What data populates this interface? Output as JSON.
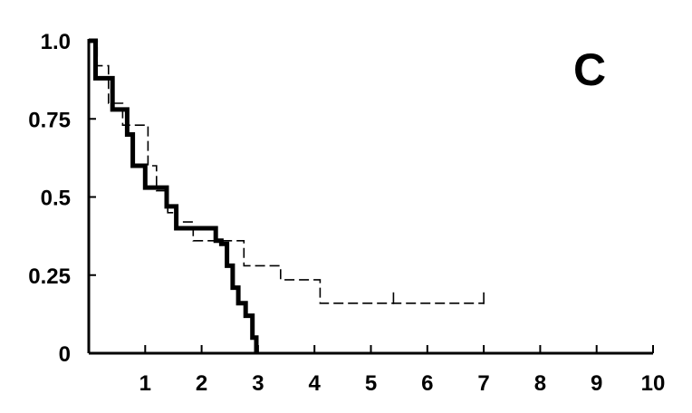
{
  "chart_data": {
    "type": "line",
    "title": "",
    "xlabel": "",
    "ylabel": "",
    "panel_label": "C",
    "xlim": [
      0,
      10
    ],
    "ylim": [
      0,
      1.0
    ],
    "x_ticks": [
      1,
      2,
      3,
      4,
      5,
      6,
      7,
      8,
      9,
      10
    ],
    "x_tick_labels": [
      "1",
      "2",
      "3",
      "4",
      "5",
      "6",
      "7",
      "8",
      "9",
      "10"
    ],
    "y_ticks": [
      0,
      0.25,
      0.5,
      0.75,
      1.0
    ],
    "y_tick_labels": [
      "0",
      "0.25",
      "0.5",
      "0.75",
      "1.0"
    ],
    "grid": false,
    "step": true,
    "series": [
      {
        "style": "solid-thick",
        "color": "#000000",
        "points": [
          [
            0,
            1.0
          ],
          [
            0.12,
            1.0
          ],
          [
            0.12,
            0.88
          ],
          [
            0.42,
            0.88
          ],
          [
            0.42,
            0.78
          ],
          [
            0.68,
            0.78
          ],
          [
            0.68,
            0.7
          ],
          [
            0.78,
            0.7
          ],
          [
            0.78,
            0.6
          ],
          [
            1.0,
            0.6
          ],
          [
            1.0,
            0.53
          ],
          [
            1.38,
            0.53
          ],
          [
            1.38,
            0.47
          ],
          [
            1.55,
            0.47
          ],
          [
            1.55,
            0.4
          ],
          [
            2.25,
            0.4
          ],
          [
            2.25,
            0.36
          ],
          [
            2.35,
            0.36
          ],
          [
            2.35,
            0.35
          ],
          [
            2.45,
            0.35
          ],
          [
            2.45,
            0.28
          ],
          [
            2.55,
            0.28
          ],
          [
            2.55,
            0.21
          ],
          [
            2.65,
            0.21
          ],
          [
            2.65,
            0.16
          ],
          [
            2.78,
            0.16
          ],
          [
            2.78,
            0.12
          ],
          [
            2.9,
            0.12
          ],
          [
            2.9,
            0.05
          ],
          [
            2.97,
            0.05
          ],
          [
            2.97,
            0.0
          ]
        ],
        "censor_ticks": []
      },
      {
        "style": "dashed",
        "color": "#000000",
        "points": [
          [
            0,
            1.0
          ],
          [
            0.15,
            1.0
          ],
          [
            0.15,
            0.92
          ],
          [
            0.35,
            0.92
          ],
          [
            0.35,
            0.8
          ],
          [
            0.6,
            0.8
          ],
          [
            0.6,
            0.73
          ],
          [
            1.05,
            0.73
          ],
          [
            1.05,
            0.6
          ],
          [
            1.2,
            0.6
          ],
          [
            1.2,
            0.52
          ],
          [
            1.4,
            0.52
          ],
          [
            1.4,
            0.45
          ],
          [
            1.55,
            0.45
          ],
          [
            1.55,
            0.42
          ],
          [
            1.85,
            0.42
          ],
          [
            1.85,
            0.36
          ],
          [
            2.75,
            0.36
          ],
          [
            2.75,
            0.28
          ],
          [
            3.4,
            0.28
          ],
          [
            3.4,
            0.235
          ],
          [
            4.1,
            0.235
          ],
          [
            4.1,
            0.16
          ],
          [
            7.0,
            0.16
          ]
        ],
        "censor_ticks": [
          [
            5.4,
            0.16
          ],
          [
            7.0,
            0.16
          ]
        ]
      }
    ]
  }
}
